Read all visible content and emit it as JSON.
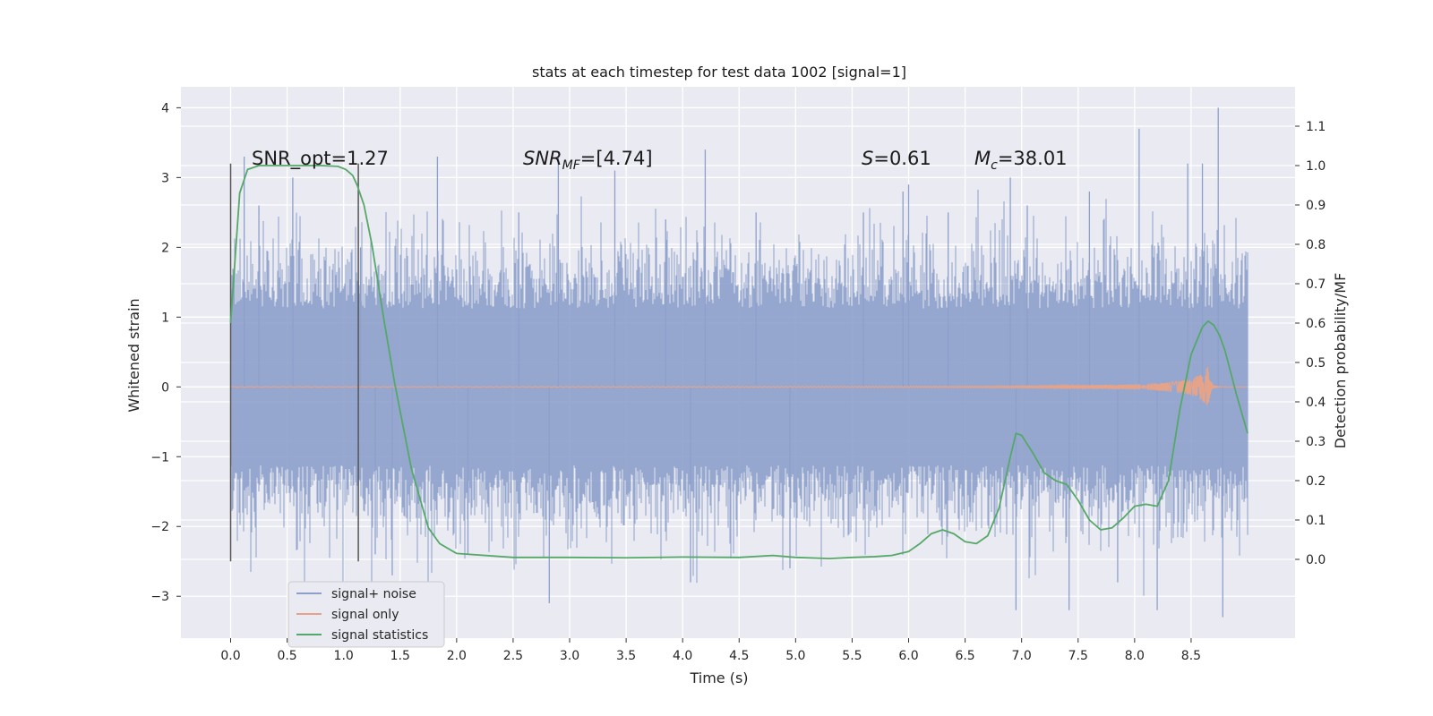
{
  "colors": {
    "background": "#eaeaf2",
    "grid": "#ffffff",
    "noise": "#8da0cb",
    "signal_only": "#e5a38a",
    "statistics": "#55a868",
    "bounds": "#555555"
  },
  "chart_data": {
    "type": "line",
    "title": "stats at each timestep for test data 1002 [signal=1]",
    "xlabel": "Time (s)",
    "ylabel_left": "Whitened strain",
    "ylabel_right": "Detection probability/MF",
    "xlim": [
      -0.44,
      9.42
    ],
    "ylim_left": [
      -3.6,
      4.3
    ],
    "ylim_right": [
      -0.2,
      1.2
    ],
    "x_ticks": [
      "0.0",
      "0.5",
      "1.0",
      "1.5",
      "2.0",
      "2.5",
      "3.0",
      "3.5",
      "4.0",
      "4.5",
      "5.0",
      "5.5",
      "6.0",
      "6.5",
      "7.0",
      "7.5",
      "8.0",
      "8.5"
    ],
    "y_ticks_left": [
      "−3",
      "−2",
      "−1",
      "0",
      "1",
      "2",
      "3",
      "4"
    ],
    "y_ticks_right": [
      "0.0",
      "0.1",
      "0.2",
      "0.3",
      "0.4",
      "0.5",
      "0.6",
      "0.7",
      "0.8",
      "0.9",
      "1.0",
      "1.1"
    ],
    "grid": true,
    "legend_position": "lower-left",
    "annotations": {
      "snr_opt": "SNR_opt=1.27",
      "snr_mf": "SNR_MF=[4.74]",
      "s": "S=0.61",
      "mc": "M_c=38.01"
    },
    "window_bounds": [
      0.0,
      1.13
    ],
    "series": [
      {
        "name": "signal+ noise",
        "axis": "left",
        "x_range": [
          0.0,
          9.0
        ],
        "envelope_typical": [
          -1.5,
          1.5
        ],
        "peaks": [
          [
            0.12,
            3.3
          ],
          [
            0.25,
            2.6
          ],
          [
            0.55,
            3.0
          ],
          [
            1.15,
            2.0
          ],
          [
            1.28,
            -2.4
          ],
          [
            1.43,
            -2.7
          ],
          [
            1.83,
            3.3
          ],
          [
            2.1,
            -2.4
          ],
          [
            2.55,
            2.5
          ],
          [
            2.82,
            -3.1
          ],
          [
            2.9,
            3.3
          ],
          [
            3.4,
            3.1
          ],
          [
            3.85,
            2.4
          ],
          [
            4.07,
            -2.8
          ],
          [
            4.2,
            3.4
          ],
          [
            4.65,
            2.5
          ],
          [
            4.95,
            -2.6
          ],
          [
            5.6,
            2.5
          ],
          [
            5.95,
            2.8
          ],
          [
            6.0,
            2.9
          ],
          [
            6.35,
            2.5
          ],
          [
            6.9,
            3.0
          ],
          [
            6.95,
            -3.2
          ],
          [
            7.05,
            2.6
          ],
          [
            7.42,
            -3.2
          ],
          [
            7.6,
            2.8
          ],
          [
            7.85,
            -2.8
          ],
          [
            8.04,
            3.7
          ],
          [
            8.2,
            -3.2
          ],
          [
            8.47,
            3.2
          ],
          [
            8.6,
            3.2
          ],
          [
            8.74,
            4.0
          ],
          [
            8.78,
            -3.3
          ]
        ]
      },
      {
        "name": "signal only",
        "axis": "left",
        "x_range": [
          0.0,
          9.0
        ],
        "chirp_peak_time": 8.65,
        "chirp_peak_amplitude": 0.3
      },
      {
        "name": "signal statistics",
        "axis": "right",
        "x": [
          0.0,
          0.08,
          0.15,
          0.25,
          0.5,
          0.8,
          0.95,
          1.02,
          1.08,
          1.12,
          1.18,
          1.25,
          1.35,
          1.45,
          1.6,
          1.75,
          1.85,
          2.0,
          2.5,
          3.0,
          3.5,
          4.0,
          4.5,
          4.8,
          5.0,
          5.3,
          5.5,
          5.7,
          5.85,
          6.0,
          6.1,
          6.2,
          6.3,
          6.4,
          6.5,
          6.6,
          6.7,
          6.8,
          6.9,
          6.95,
          7.0,
          7.1,
          7.2,
          7.3,
          7.4,
          7.5,
          7.6,
          7.7,
          7.8,
          7.9,
          8.0,
          8.1,
          8.2,
          8.3,
          8.4,
          8.5,
          8.6,
          8.65,
          8.7,
          8.75,
          8.8,
          8.9,
          9.0
        ],
        "y": [
          0.6,
          0.93,
          0.99,
          1.0,
          1.0,
          1.0,
          0.998,
          0.99,
          0.975,
          0.95,
          0.9,
          0.8,
          0.62,
          0.45,
          0.23,
          0.08,
          0.04,
          0.015,
          0.005,
          0.005,
          0.004,
          0.006,
          0.005,
          0.01,
          0.005,
          0.002,
          0.005,
          0.007,
          0.01,
          0.02,
          0.04,
          0.065,
          0.075,
          0.065,
          0.045,
          0.04,
          0.06,
          0.13,
          0.26,
          0.32,
          0.315,
          0.27,
          0.22,
          0.2,
          0.19,
          0.15,
          0.1,
          0.075,
          0.08,
          0.105,
          0.135,
          0.14,
          0.135,
          0.2,
          0.38,
          0.52,
          0.59,
          0.605,
          0.595,
          0.57,
          0.53,
          0.42,
          0.32
        ]
      }
    ]
  }
}
